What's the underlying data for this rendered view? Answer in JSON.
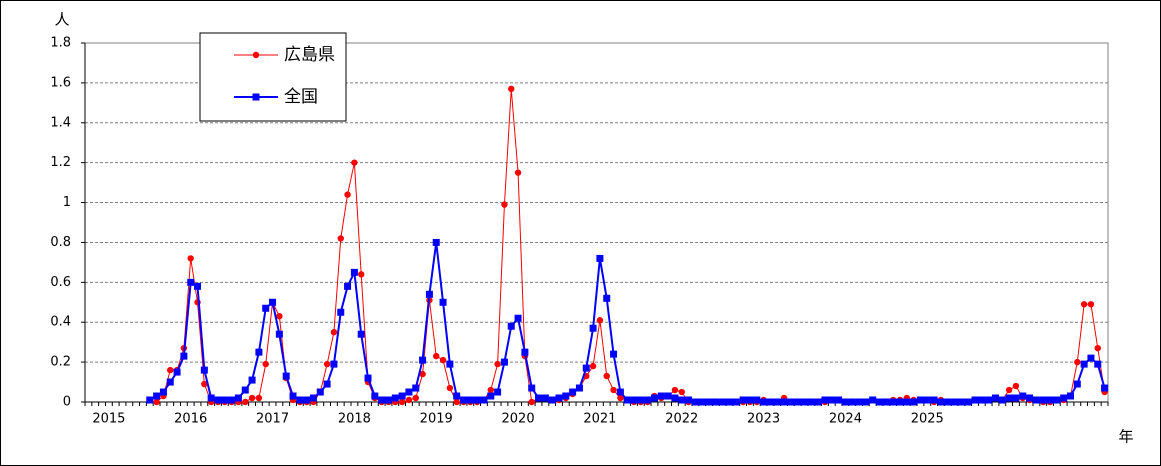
{
  "chart_data": {
    "type": "line",
    "y_label": "人",
    "x_label": "年",
    "categories": [
      null,
      null,
      null,
      "2015",
      null,
      null,
      null,
      null,
      null,
      null,
      null,
      null,
      null,
      null,
      null,
      "2016",
      null,
      null,
      null,
      null,
      null,
      null,
      null,
      null,
      null,
      null,
      null,
      "2017",
      null,
      null,
      null,
      null,
      null,
      null,
      null,
      null,
      null,
      null,
      null,
      "2018",
      null,
      null,
      null,
      null,
      null,
      null,
      null,
      null,
      null,
      null,
      null,
      "2019",
      null,
      null,
      null,
      null,
      null,
      null,
      null,
      null,
      null,
      null,
      null,
      "2020",
      null,
      null,
      null,
      null,
      null,
      null,
      null,
      null,
      null,
      null,
      null,
      "2021",
      null,
      null,
      null,
      null,
      null,
      null,
      null,
      null,
      null,
      null,
      null,
      "2022",
      null,
      null,
      null,
      null,
      null,
      null,
      null,
      null,
      null,
      null,
      null,
      "2023",
      null,
      null,
      null,
      null,
      null,
      null,
      null,
      null,
      null,
      null,
      null,
      "2024",
      null,
      null,
      null,
      null,
      null,
      null,
      null,
      null,
      null,
      null,
      null,
      "2025",
      null,
      null,
      null,
      null,
      null,
      null,
      null,
      null,
      null,
      null,
      null,
      null,
      null,
      null,
      null,
      null,
      null,
      null,
      null,
      null,
      null,
      null,
      null,
      null,
      null,
      null
    ],
    "series": [
      {
        "name": "広島県",
        "color": "#ff0000",
        "marker": "circle",
        "values": [
          null,
          null,
          null,
          null,
          null,
          null,
          null,
          null,
          null,
          null,
          0,
          0.03,
          0.16,
          0.16,
          0.27,
          0.72,
          0.5,
          0.09,
          0,
          0,
          0,
          0,
          0,
          0,
          0.02,
          0.02,
          0.19,
          0.5,
          0.43,
          0.12,
          0.01,
          0,
          0,
          0,
          0.05,
          0.19,
          0.35,
          0.82,
          1.04,
          1.2,
          0.64,
          0.1,
          0.02,
          0,
          0,
          0,
          0,
          0.01,
          0.02,
          0.14,
          0.51,
          0.23,
          0.21,
          0.07,
          0,
          0,
          0,
          0,
          0.01,
          0.06,
          0.19,
          0.99,
          1.57,
          1.15,
          0.23,
          0,
          0.02,
          0.02,
          0.01,
          0.01,
          0.02,
          0.04,
          0.07,
          0.13,
          0.18,
          0.41,
          0.13,
          0.06,
          0.02,
          0.01,
          0,
          0,
          0,
          0.03,
          0.02,
          0.03,
          0.06,
          0.05,
          0,
          0,
          0,
          0,
          0,
          0,
          0,
          0,
          0,
          0,
          0,
          0.01,
          0,
          0,
          0.02,
          0,
          0,
          0,
          0,
          0,
          0,
          0.01,
          0.01,
          0,
          0,
          0,
          0,
          0.01,
          0,
          0,
          0.01,
          0.01,
          0.02,
          0.01,
          0.01,
          0.01,
          0,
          0.01,
          0,
          0,
          0,
          0,
          0.01,
          0.01,
          0.01,
          0.02,
          0.01,
          0.06,
          0.08,
          0.02,
          0.01,
          0.01,
          0,
          0,
          0.01,
          0.01,
          0.03,
          0.2,
          0.49,
          0.49,
          0.27,
          0.05
        ]
      },
      {
        "name": "全国",
        "color": "#0000ff",
        "marker": "square",
        "values": [
          null,
          null,
          null,
          null,
          null,
          null,
          null,
          null,
          null,
          0.01,
          0.03,
          0.05,
          0.1,
          0.15,
          0.23,
          0.6,
          0.58,
          0.16,
          0.02,
          0.01,
          0.01,
          0.01,
          0.02,
          0.06,
          0.11,
          0.25,
          0.47,
          0.5,
          0.34,
          0.13,
          0.03,
          0.01,
          0.01,
          0.02,
          0.05,
          0.09,
          0.19,
          0.45,
          0.58,
          0.65,
          0.34,
          0.12,
          0.03,
          0.01,
          0.01,
          0.02,
          0.03,
          0.05,
          0.07,
          0.21,
          0.54,
          0.8,
          0.5,
          0.19,
          0.03,
          0.01,
          0.01,
          0.01,
          0.01,
          0.03,
          0.05,
          0.2,
          0.38,
          0.42,
          0.25,
          0.07,
          0.02,
          0.02,
          0.01,
          0.02,
          0.03,
          0.05,
          0.07,
          0.17,
          0.37,
          0.72,
          0.52,
          0.24,
          0.05,
          0.01,
          0.01,
          0.01,
          0.01,
          0.02,
          0.03,
          0.03,
          0.02,
          0.01,
          0.01,
          0,
          0,
          0,
          0,
          0,
          0,
          0,
          0.01,
          0.01,
          0.01,
          0,
          0,
          0,
          0,
          0,
          0,
          0,
          0,
          0,
          0.01,
          0.01,
          0.01,
          0,
          0,
          0,
          0,
          0.01,
          0,
          0,
          0,
          0,
          0,
          0,
          0.01,
          0.01,
          0.01,
          0,
          0,
          0,
          0,
          0,
          0.01,
          0.01,
          0.01,
          0.02,
          0.01,
          0.02,
          0.02,
          0.03,
          0.02,
          0.01,
          0.01,
          0.01,
          0.01,
          0.02,
          0.03,
          0.09,
          0.19,
          0.22,
          0.19,
          0.07
        ]
      }
    ],
    "ylim": [
      0,
      1.8
    ],
    "yticks": [
      0,
      0.2,
      0.4,
      0.6,
      0.8,
      1,
      1.2,
      1.4,
      1.6,
      1.8
    ],
    "grid": true
  }
}
